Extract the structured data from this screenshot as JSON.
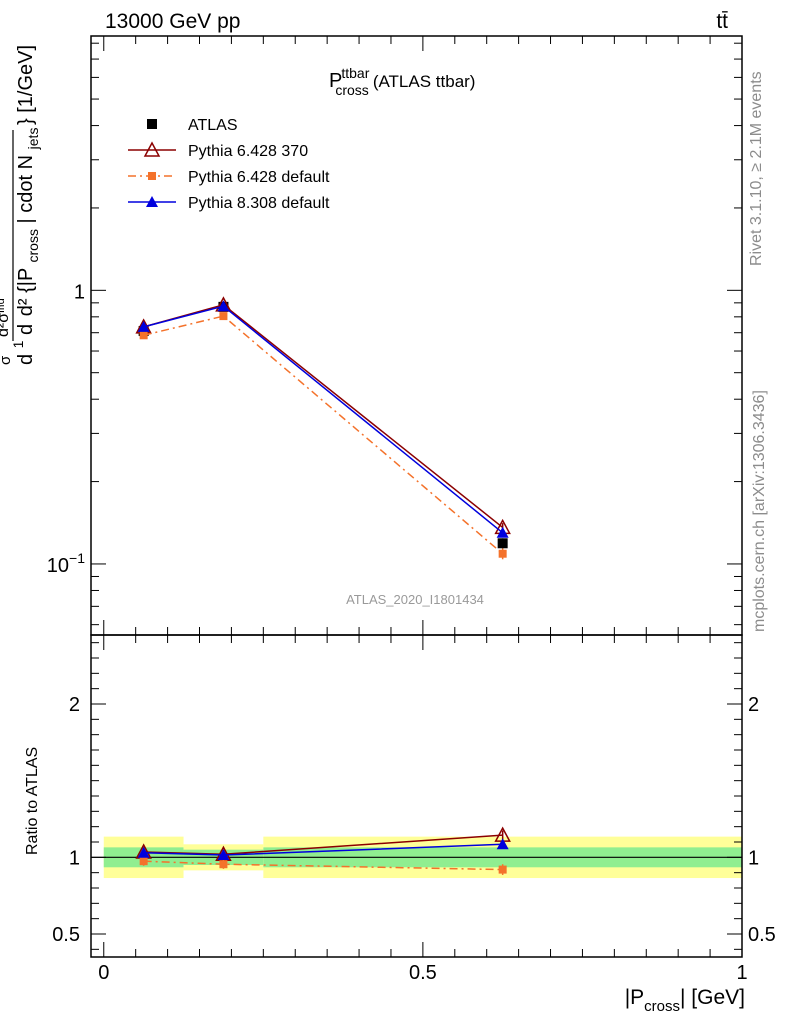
{
  "header": {
    "energy_label": "13000 GeV pp",
    "process_label": "tt̄"
  },
  "side": {
    "rivet_label": "Rivet 3.1.10, ≥ 2.1M events",
    "source_label": "mcplots.cern.ch [arXiv:1306.3436]"
  },
  "chart_data": [
    {
      "type": "line",
      "title_main": "P",
      "title_sup": "ttbar",
      "title_sub": "cross",
      "title_rest": "(ATLAS ttbar)",
      "analysis_label": "ATLAS_2020_I1801434",
      "ylabel_parts": {
        "frac_num": "d",
        "frac_one": "1",
        "frac_den": "σ",
        "d2sigma_num": "d²σᴵⁿᵈ",
        "d2_den": "d²",
        "brace_open": "{|P",
        "cross": "cross",
        "mid": "| cdot N",
        "jets": "jets",
        "brace_close": "} [1/GeV]"
      },
      "y_scale": "log",
      "ylim": [
        0.055,
        8.5
      ],
      "xlim": [
        -0.02,
        1.0
      ],
      "y_ticks": [
        {
          "value": 1,
          "base": "1",
          "exp": ""
        },
        {
          "value": 0.1,
          "base": "10",
          "exp": "−1"
        }
      ],
      "x": [
        0.0625,
        0.1875,
        0.625
      ],
      "series": [
        {
          "name": "ATLAS",
          "color": "#000000",
          "marker": "square",
          "y": [
            0.71,
            0.87,
            0.119
          ],
          "yerr": [
            0.02,
            0.03,
            0.005
          ],
          "style": "points"
        },
        {
          "name": "Pythia 6.428 370",
          "color": "#8b0000",
          "marker": "triangle-open",
          "y": [
            0.735,
            0.885,
            0.136
          ],
          "yerr": [
            0.02,
            0.025,
            0.005
          ],
          "style": "solid"
        },
        {
          "name": "Pythia 6.428 default",
          "color": "#f4722b",
          "marker": "square-small",
          "y": [
            0.685,
            0.805,
            0.109
          ],
          "yerr": [
            0.02,
            0.025,
            0.005
          ],
          "style": "dashdot"
        },
        {
          "name": "Pythia 8.308 default",
          "color": "#0000dd",
          "marker": "triangle",
          "y": [
            0.735,
            0.875,
            0.13
          ],
          "yerr": [
            0.02,
            0.025,
            0.005
          ],
          "style": "solid"
        }
      ]
    },
    {
      "type": "line",
      "ylabel": "Ratio to ATLAS",
      "xlabel_main": "|P",
      "xlabel_sub": "cross",
      "xlabel_rest": "| [GeV]",
      "ylim": [
        0.35,
        2.45
      ],
      "xlim": [
        -0.02,
        1.0
      ],
      "y_ticks": [
        {
          "value": 0.5,
          "label": "0.5"
        },
        {
          "value": 1,
          "label": "1"
        },
        {
          "value": 2,
          "label": "2"
        }
      ],
      "x_ticks": [
        {
          "value": 0,
          "label": "0"
        },
        {
          "value": 0.5,
          "label": "0.5"
        },
        {
          "value": 1,
          "label": "1"
        }
      ],
      "bands": [
        {
          "x0": 0.0,
          "x1": 0.125,
          "inner": [
            0.935,
            1.065
          ],
          "outer": [
            0.865,
            1.135
          ]
        },
        {
          "x0": 0.125,
          "x1": 0.25,
          "inner": [
            0.95,
            1.05
          ],
          "outer": [
            0.915,
            1.085
          ]
        },
        {
          "x0": 0.25,
          "x1": 1.0,
          "inner": [
            0.935,
            1.065
          ],
          "outer": [
            0.865,
            1.135
          ]
        }
      ],
      "band_colors": {
        "inner": "#90ee90",
        "outer": "#ffff99"
      },
      "x": [
        0.0625,
        0.1875,
        0.625
      ],
      "series": [
        {
          "name": "Pythia 6.428 370",
          "color": "#8b0000",
          "marker": "triangle-open",
          "style": "solid",
          "y": [
            1.035,
            1.02,
            1.145
          ],
          "yerr": [
            0.03,
            0.03,
            0.03
          ]
        },
        {
          "name": "Pythia 6.428 default",
          "color": "#f4722b",
          "marker": "square-small",
          "style": "dashdot",
          "y": [
            0.975,
            0.955,
            0.92
          ],
          "yerr": [
            0.03,
            0.03,
            0.035
          ]
        },
        {
          "name": "Pythia 8.308 default",
          "color": "#0000dd",
          "marker": "triangle",
          "style": "solid",
          "y": [
            1.03,
            1.015,
            1.085
          ],
          "yerr": [
            0.03,
            0.03,
            0.03
          ]
        }
      ]
    }
  ]
}
